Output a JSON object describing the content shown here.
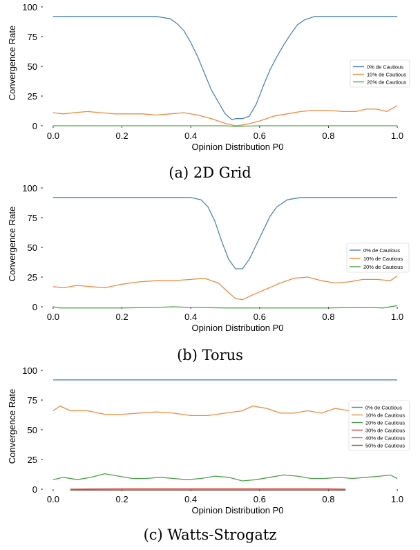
{
  "charts": [
    {
      "caption": "(a) 2D Grid",
      "chart_data": {
        "type": "line",
        "xlabel": "Opinion Distribution P0",
        "ylabel": "Convergence Rate",
        "xlim": [
          -0.03,
          1.03
        ],
        "ylim": [
          0,
          100
        ],
        "xticks": [
          "0.0",
          "0.2",
          "0.4",
          "0.6",
          "0.8",
          "1.0"
        ],
        "yticks": [
          "0",
          "25",
          "50",
          "75",
          "100"
        ],
        "legend_position": "center-right",
        "series": [
          {
            "name": "0% de Cautious",
            "color": "#4c85b8",
            "x": [
              0,
              0.1,
              0.2,
              0.3,
              0.34,
              0.36,
              0.38,
              0.4,
              0.42,
              0.44,
              0.46,
              0.48,
              0.5,
              0.52,
              0.53,
              0.55,
              0.57,
              0.59,
              0.61,
              0.63,
              0.65,
              0.67,
              0.69,
              0.71,
              0.73,
              0.76,
              0.8,
              0.9,
              1.0
            ],
            "y": [
              92,
              92,
              92,
              92,
              90,
              86,
              80,
              70,
              58,
              44,
              30,
              20,
              10,
              5,
              6,
              6,
              8,
              18,
              33,
              47,
              58,
              68,
              77,
              85,
              89,
              92,
              92,
              92,
              92
            ]
          },
          {
            "name": "10% de Cautious",
            "color": "#f08a3c",
            "x": [
              0,
              0.03,
              0.06,
              0.1,
              0.14,
              0.18,
              0.22,
              0.26,
              0.3,
              0.34,
              0.38,
              0.42,
              0.46,
              0.5,
              0.53,
              0.56,
              0.6,
              0.64,
              0.68,
              0.72,
              0.76,
              0.8,
              0.84,
              0.88,
              0.91,
              0.94,
              0.97,
              1.0
            ],
            "y": [
              11,
              10,
              11,
              12,
              11,
              10,
              10,
              10,
              9,
              10,
              11,
              9,
              6,
              2,
              0,
              1,
              4,
              8,
              10,
              12,
              13,
              13,
              12,
              12,
              14,
              14,
              12,
              17
            ]
          },
          {
            "name": "20% de Cautious",
            "color": "#4aa34a",
            "x": [
              0,
              0.2,
              0.4,
              0.5,
              0.53,
              0.6,
              0.8,
              1.0
            ],
            "y": [
              0,
              0,
              0,
              0,
              -0.5,
              0,
              0,
              0
            ]
          }
        ]
      }
    },
    {
      "caption": "(b) Torus",
      "chart_data": {
        "type": "line",
        "xlabel": "Opinion Distribution P0",
        "ylabel": "Convergence Rate",
        "xlim": [
          -0.03,
          1.03
        ],
        "ylim": [
          0,
          100
        ],
        "xticks": [
          "0.0",
          "0.2",
          "0.4",
          "0.6",
          "0.8",
          "1.0"
        ],
        "yticks": [
          "0",
          "25",
          "50",
          "75",
          "100"
        ],
        "legend_position": "center-right",
        "series": [
          {
            "name": "0% de Cautious",
            "color": "#4c85b8",
            "x": [
              0,
              0.1,
              0.2,
              0.3,
              0.4,
              0.43,
              0.45,
              0.47,
              0.49,
              0.51,
              0.53,
              0.55,
              0.57,
              0.59,
              0.61,
              0.63,
              0.65,
              0.68,
              0.72,
              0.8,
              0.9,
              1.0
            ],
            "y": [
              92,
              92,
              92,
              92,
              92,
              90,
              84,
              72,
              55,
              40,
              32,
              32,
              40,
              52,
              64,
              76,
              84,
              90,
              92,
              92,
              92,
              92
            ]
          },
          {
            "name": "10% de Cautious",
            "color": "#f08a3c",
            "x": [
              0,
              0.03,
              0.07,
              0.11,
              0.15,
              0.2,
              0.25,
              0.3,
              0.35,
              0.4,
              0.44,
              0.48,
              0.51,
              0.53,
              0.55,
              0.58,
              0.62,
              0.66,
              0.7,
              0.74,
              0.78,
              0.82,
              0.86,
              0.9,
              0.94,
              0.98,
              1.0
            ],
            "y": [
              17,
              16,
              18,
              17,
              16,
              19,
              21,
              22,
              22,
              23,
              24,
              20,
              12,
              7,
              6,
              10,
              15,
              20,
              24,
              25,
              22,
              20,
              21,
              23,
              23,
              22,
              26
            ]
          },
          {
            "name": "20% de Cautious",
            "color": "#4aa34a",
            "x": [
              0,
              0.02,
              0.1,
              0.2,
              0.3,
              0.35,
              0.4,
              0.5,
              0.6,
              0.7,
              0.8,
              0.9,
              0.96,
              1.0
            ],
            "y": [
              0,
              -1,
              -1,
              -1,
              -0.5,
              0,
              -0.5,
              -1,
              -1,
              -1,
              -1,
              -0.5,
              -1,
              1
            ]
          }
        ]
      }
    },
    {
      "caption": "(c) Watts-Strogatz",
      "chart_data": {
        "type": "line",
        "xlabel": "Opinion Distribution P0",
        "ylabel": "Convergence Rate",
        "xlim": [
          -0.03,
          1.03
        ],
        "ylim": [
          0,
          100
        ],
        "xticks": [
          "0.0",
          "0.2",
          "0.4",
          "0.6",
          "0.8",
          "1.0"
        ],
        "yticks": [
          "0",
          "25",
          "50",
          "75",
          "100"
        ],
        "legend_position": "center-right",
        "series": [
          {
            "name": "0% de Cautious",
            "color": "#4c85b8",
            "x": [
              0,
              0.5,
              1.0
            ],
            "y": [
              92,
              92,
              92
            ]
          },
          {
            "name": "10% de Cautious",
            "color": "#f08a3c",
            "x": [
              0,
              0.02,
              0.05,
              0.1,
              0.15,
              0.2,
              0.25,
              0.3,
              0.35,
              0.4,
              0.45,
              0.5,
              0.55,
              0.58,
              0.62,
              0.66,
              0.7,
              0.74,
              0.78,
              0.82,
              0.86,
              0.9,
              0.94,
              0.97,
              1.0
            ],
            "y": [
              66,
              70,
              66,
              66,
              63,
              63,
              64,
              65,
              64,
              62,
              62,
              64,
              66,
              70,
              68,
              64,
              64,
              66,
              64,
              68,
              66,
              63,
              64,
              70,
              66
            ]
          },
          {
            "name": "20% de Cautious",
            "color": "#4aa34a",
            "x": [
              0,
              0.03,
              0.07,
              0.11,
              0.15,
              0.19,
              0.23,
              0.27,
              0.31,
              0.35,
              0.39,
              0.43,
              0.47,
              0.51,
              0.55,
              0.59,
              0.63,
              0.67,
              0.71,
              0.75,
              0.79,
              0.83,
              0.87,
              0.91,
              0.95,
              0.98,
              1.0
            ],
            "y": [
              8,
              10,
              8,
              10,
              13,
              11,
              9,
              9,
              10,
              9,
              8,
              9,
              11,
              10,
              7,
              8,
              10,
              12,
              11,
              9,
              9,
              10,
              9,
              10,
              11,
              12,
              9
            ]
          },
          {
            "name": "30% de Cautious",
            "color": "#c9403a",
            "x": [
              0.05,
              0.2,
              0.4,
              0.6,
              0.8,
              0.85
            ],
            "y": [
              0,
              0.3,
              0.3,
              0.3,
              0.3,
              0
            ]
          },
          {
            "name": "40% de Cautious",
            "color": "#9467bd",
            "x": [
              0.05,
              0.85
            ],
            "y": [
              -0.5,
              -0.5
            ]
          },
          {
            "name": "50% de Cautious",
            "color": "#8c564b",
            "x": [
              0.05,
              0.85
            ],
            "y": [
              -0.8,
              -0.8
            ]
          }
        ]
      }
    }
  ]
}
